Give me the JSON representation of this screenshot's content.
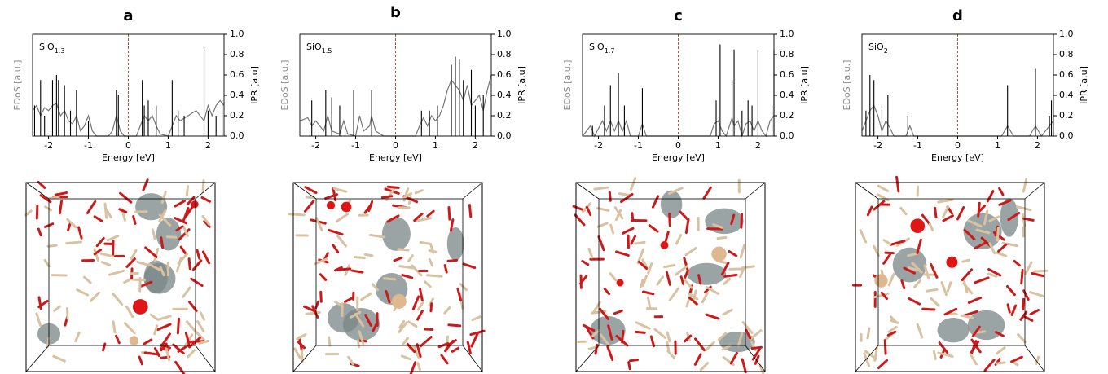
{
  "chart_data": [
    {
      "type": "line",
      "title": "a",
      "label": {
        "base": "SiO",
        "sub": "1.3"
      },
      "xlabel": "Energy [eV]",
      "ylabel": "EDoS [a.u.]",
      "y2label": "IPR [a.u]",
      "xlim": [
        -2.4,
        2.4
      ],
      "xticks": [
        -2,
        -1,
        0,
        1,
        2
      ],
      "ylim": [
        0,
        1
      ],
      "y2lim": [
        0,
        1
      ],
      "y2ticks": [
        {
          "value": 0,
          "label": "0.0"
        },
        0.2,
        0.4,
        0.6,
        0.8,
        {
          "value": 1,
          "label": "1.0"
        }
      ],
      "vline": 0,
      "vline_color": "#c0392b",
      "series": [
        {
          "style": "line",
          "color": "#777777",
          "x": [
            -2.4,
            -2.3,
            -2.2,
            -2.1,
            -2.0,
            -1.9,
            -1.8,
            -1.7,
            -1.6,
            -1.5,
            -1.4,
            -1.3,
            -1.2,
            -1.1,
            -1.0,
            -0.9,
            -0.8,
            -0.5,
            -0.4,
            -0.3,
            -0.2,
            -0.1,
            0.2,
            0.3,
            0.4,
            0.5,
            0.6,
            0.7,
            0.8,
            1.0,
            1.1,
            1.2,
            1.3,
            1.5,
            1.7,
            1.8,
            1.9,
            2.0,
            2.1,
            2.2,
            2.3,
            2.4
          ],
          "values": [
            0.25,
            0.3,
            0.2,
            0.28,
            0.25,
            0.3,
            0.32,
            0.2,
            0.25,
            0.15,
            0.12,
            0.2,
            0.05,
            0.1,
            0.2,
            0.05,
            0,
            0,
            0.05,
            0.2,
            0.05,
            0,
            0,
            0.1,
            0.2,
            0.15,
            0.2,
            0.1,
            0.02,
            0,
            0.1,
            0.2,
            0.15,
            0.2,
            0.25,
            0.2,
            0.15,
            0.3,
            0.2,
            0.3,
            0.35,
            0.3
          ]
        },
        {
          "style": "sticks",
          "color": "#000000",
          "axis": "y2",
          "x": [
            -2.35,
            -2.2,
            -2.1,
            -1.9,
            -1.8,
            -1.75,
            -1.6,
            -1.45,
            -1.3,
            -1.0,
            -0.3,
            -0.25,
            0.35,
            0.4,
            0.5,
            0.7,
            1.1,
            1.25,
            1.4,
            1.9,
            2.0,
            2.2,
            2.35
          ],
          "values": [
            0.3,
            0.55,
            0.2,
            0.55,
            0.6,
            0.55,
            0.5,
            0.25,
            0.45,
            0.15,
            0.45,
            0.4,
            0.55,
            0.3,
            0.35,
            0.3,
            0.55,
            0.25,
            0.2,
            0.88,
            0.25,
            0.2,
            0.35
          ]
        }
      ]
    },
    {
      "type": "line",
      "title": "b",
      "label": {
        "base": "SiO",
        "sub": "1.5"
      },
      "xlabel": "Energy [eV]",
      "ylabel": "EDoS [a.u.]",
      "y2label": "IPR [a.u]",
      "xlim": [
        -2.4,
        2.4
      ],
      "xticks": [
        -2,
        -1,
        0,
        1,
        2
      ],
      "ylim": [
        0,
        1
      ],
      "y2lim": [
        0,
        1
      ],
      "y2ticks": [
        {
          "value": 0,
          "label": "0.0"
        },
        0.2,
        0.4,
        0.6,
        0.8,
        {
          "value": 1,
          "label": "1.0"
        }
      ],
      "vline": 0,
      "vline_color": "#c0392b",
      "series": [
        {
          "style": "line",
          "color": "#777777",
          "x": [
            -2.4,
            -2.2,
            -2.1,
            -2.0,
            -1.8,
            -1.7,
            -1.6,
            -1.4,
            -1.3,
            -1.2,
            -1.0,
            -0.9,
            -0.8,
            -0.65,
            -0.6,
            -0.5,
            -0.3,
            0.5,
            0.6,
            0.7,
            0.8,
            0.9,
            1.0,
            1.1,
            1.2,
            1.3,
            1.4,
            1.5,
            1.6,
            1.7,
            1.8,
            1.9,
            2.0,
            2.1,
            2.2,
            2.3,
            2.4
          ],
          "values": [
            0.15,
            0.18,
            0.1,
            0.15,
            0.05,
            0.2,
            0.05,
            0.02,
            0.15,
            0.02,
            0,
            0.2,
            0.05,
            0.1,
            0.2,
            0.05,
            0,
            0,
            0.1,
            0.18,
            0.1,
            0.2,
            0.15,
            0.2,
            0.3,
            0.45,
            0.55,
            0.5,
            0.45,
            0.35,
            0.5,
            0.3,
            0.35,
            0.4,
            0.25,
            0.45,
            0.6
          ]
        },
        {
          "style": "sticks",
          "color": "#000000",
          "axis": "y2",
          "x": [
            -2.1,
            -1.75,
            -1.6,
            -1.4,
            -1.05,
            -0.6,
            0.65,
            0.85,
            1.05,
            1.4,
            1.5,
            1.6,
            1.7,
            1.9,
            2.0,
            2.2
          ],
          "values": [
            0.35,
            0.45,
            0.38,
            0.3,
            0.45,
            0.45,
            0.25,
            0.25,
            0.3,
            0.7,
            0.78,
            0.75,
            0.55,
            0.65,
            0.3,
            0.4
          ]
        }
      ]
    },
    {
      "type": "line",
      "title": "c",
      "label": {
        "base": "SiO",
        "sub": "1.7"
      },
      "xlabel": "Energy [eV]",
      "ylabel": "EDoS [a.u.]",
      "y2label": "IPR [a.u]",
      "xlim": [
        -2.4,
        2.4
      ],
      "xticks": [
        -2,
        -1,
        0,
        1,
        2
      ],
      "ylim": [
        0,
        1
      ],
      "y2lim": [
        0,
        1
      ],
      "y2ticks": [
        {
          "value": 0,
          "label": "0.0"
        },
        0.2,
        0.4,
        0.6,
        0.8,
        {
          "value": 1,
          "label": "1.0"
        }
      ],
      "vline": 0,
      "vline_color": "#c0392b",
      "series": [
        {
          "style": "line",
          "color": "#777777",
          "x": [
            -2.4,
            -2.2,
            -2.1,
            -1.9,
            -1.8,
            -1.7,
            -1.6,
            -1.5,
            -1.4,
            -1.3,
            -1.2,
            -1.0,
            -0.9,
            -0.8,
            0.8,
            0.9,
            1.0,
            1.1,
            1.2,
            1.35,
            1.4,
            1.5,
            1.6,
            1.7,
            1.8,
            1.9,
            2.0,
            2.1,
            2.2,
            2.3,
            2.4
          ],
          "values": [
            0,
            0.1,
            0,
            0.15,
            0.05,
            0.15,
            0.05,
            0.15,
            0.05,
            0.15,
            0,
            0,
            0.12,
            0,
            0,
            0.12,
            0.15,
            0.05,
            0,
            0.18,
            0.1,
            0.15,
            0,
            0.12,
            0.15,
            0.05,
            0.15,
            0.05,
            0,
            0.15,
            0.2
          ]
        },
        {
          "style": "sticks",
          "color": "#000000",
          "axis": "y2",
          "x": [
            -2.15,
            -1.85,
            -1.7,
            -1.5,
            -1.35,
            -0.9,
            0.95,
            1.05,
            1.35,
            1.4,
            1.6,
            1.75,
            1.85,
            2.0,
            2.35,
            2.4
          ],
          "values": [
            0.1,
            0.3,
            0.5,
            0.62,
            0.3,
            0.47,
            0.35,
            0.9,
            0.55,
            0.85,
            0.25,
            0.35,
            0.3,
            0.85,
            0.3,
            0.85
          ]
        }
      ]
    },
    {
      "type": "line",
      "title": "d",
      "label": {
        "base": "SiO",
        "sub": "2"
      },
      "xlabel": "Energy [eV]",
      "ylabel": "EDoS [a.u.]",
      "y2label": "IPR [a.u]",
      "xlim": [
        -2.4,
        2.4
      ],
      "xticks": [
        -2,
        -1,
        0,
        1,
        2
      ],
      "ylim": [
        0,
        1
      ],
      "y2lim": [
        0,
        1
      ],
      "y2ticks": [
        {
          "value": 0,
          "label": "0.0"
        },
        0.2,
        0.4,
        0.6,
        0.8,
        {
          "value": 1,
          "label": "1.0"
        }
      ],
      "vline": 0,
      "vline_color": "#c0392b",
      "series": [
        {
          "style": "line",
          "color": "#777777",
          "x": [
            -2.4,
            -2.3,
            -2.2,
            -2.1,
            -2.0,
            -1.9,
            -1.8,
            -1.7,
            -1.6,
            -1.3,
            -1.2,
            -1.1,
            1.1,
            1.25,
            1.4,
            1.8,
            1.95,
            2.1,
            2.3,
            2.4
          ],
          "values": [
            0.05,
            0.15,
            0.25,
            0.3,
            0.2,
            0.05,
            0.15,
            0.08,
            0,
            0,
            0.1,
            0,
            0,
            0.1,
            0,
            0,
            0.1,
            0,
            0.1,
            0.15
          ]
        },
        {
          "style": "sticks",
          "color": "#000000",
          "axis": "y2",
          "x": [
            -2.3,
            -2.2,
            -2.1,
            -1.9,
            -1.75,
            -1.25,
            1.25,
            1.95,
            2.3,
            2.35
          ],
          "values": [
            0.25,
            0.6,
            0.55,
            0.3,
            0.4,
            0.2,
            0.5,
            0.66,
            0.2,
            0.35
          ]
        }
      ]
    }
  ]
}
